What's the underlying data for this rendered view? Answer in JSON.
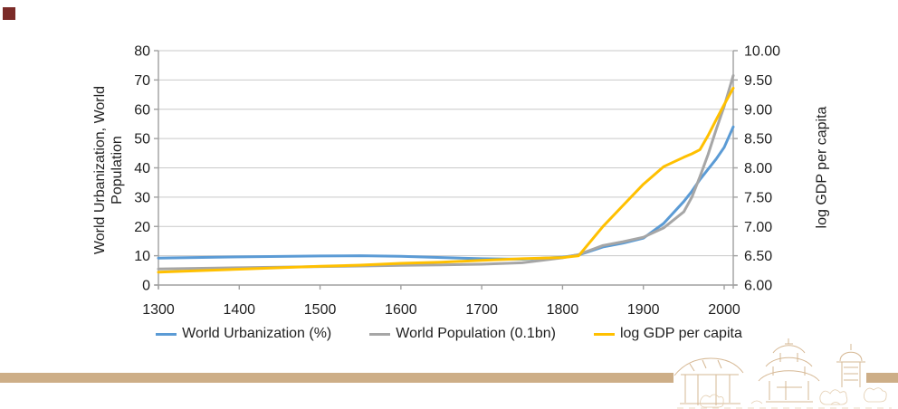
{
  "decorations": {
    "corner_square_color": "#7b2b28",
    "bottom_bar_color": "#cdae87",
    "watermark_name": "temple-village-line-art"
  },
  "axis_titles": {
    "left_line1": "World Urbanization, World",
    "left_line2": "Population",
    "right": "log GDP per capita"
  },
  "chart_data": {
    "type": "line",
    "title": "",
    "grid": true,
    "legend_position": "bottom",
    "x": [
      1300,
      1400,
      1500,
      1550,
      1600,
      1650,
      1700,
      1750,
      1800,
      1820,
      1850,
      1875,
      1900,
      1925,
      1950,
      1960,
      1970,
      1980,
      1990,
      2000,
      2013
    ],
    "x_axis": {
      "min": 1300,
      "max": 2000,
      "step": 100,
      "tick_labels": [
        "1300",
        "1400",
        "1500",
        "1600",
        "1700",
        "1800",
        "1900",
        "2000"
      ]
    },
    "left_axis": {
      "title": "World Urbanization, World Population",
      "min": 0,
      "max": 80,
      "step": 10,
      "tick_labels": [
        "0",
        "10",
        "20",
        "30",
        "40",
        "50",
        "60",
        "70",
        "80"
      ]
    },
    "right_axis": {
      "title": "log GDP per capita",
      "min": 6,
      "max": 10,
      "step": 0.5,
      "tick_labels": [
        "6.00",
        "6.50",
        "7.00",
        "7.50",
        "8.00",
        "8.50",
        "9.00",
        "9.50",
        "10.00"
      ]
    },
    "series": [
      {
        "name": "World Urbanization (%)",
        "axis": "left",
        "color": "#5B9BD5",
        "values": [
          9.2,
          9.6,
          9.9,
          10.0,
          9.8,
          9.4,
          9.0,
          8.8,
          9.5,
          10.3,
          13.0,
          14.3,
          16.0,
          21.0,
          28.5,
          32.0,
          36.0,
          39.5,
          43.0,
          47.0,
          54.0
        ]
      },
      {
        "name": "World Population (0.1bn)",
        "axis": "left",
        "color": "#A6A6A6",
        "values": [
          5.5,
          5.9,
          6.3,
          6.5,
          6.7,
          6.9,
          7.1,
          7.6,
          9.3,
          10.4,
          13.5,
          14.8,
          16.3,
          19.5,
          25.0,
          30.0,
          37.0,
          44.5,
          53.0,
          61.0,
          71.5
        ]
      },
      {
        "name": "log GDP per capita",
        "axis": "right",
        "color": "#FFC000",
        "values": [
          6.22,
          6.27,
          6.32,
          6.34,
          6.37,
          6.39,
          6.42,
          6.45,
          6.47,
          6.5,
          7.0,
          7.36,
          7.72,
          8.02,
          8.18,
          8.24,
          8.31,
          8.55,
          8.82,
          9.08,
          9.36
        ]
      }
    ]
  }
}
